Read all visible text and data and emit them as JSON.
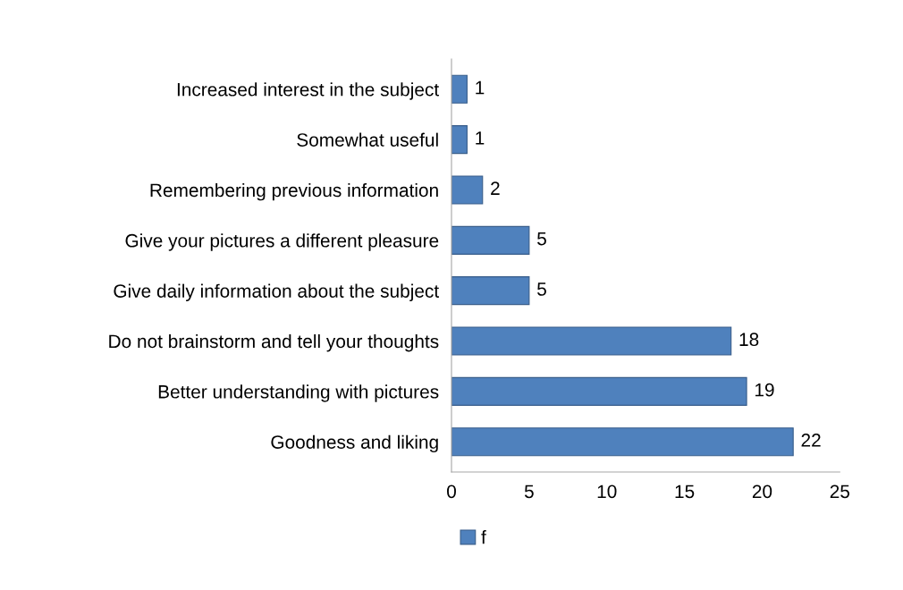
{
  "chart_data": {
    "type": "bar",
    "orientation": "horizontal",
    "categories": [
      "Increased interest in the subject",
      "Somewhat useful",
      "Remembering previous information",
      "Give your pictures a different pleasure",
      "Give daily information about the subject",
      "Do not brainstorm and tell your thoughts",
      "Better understanding with pictures",
      "Goodness and liking"
    ],
    "series": [
      {
        "name": "f",
        "color": "#4f81bd",
        "values": [
          1,
          1,
          2,
          5,
          5,
          18,
          19,
          22
        ]
      }
    ],
    "xlim": [
      0,
      25
    ],
    "xticks": [
      0,
      5,
      10,
      15,
      20,
      25
    ],
    "data_labels": true,
    "legend": "bottom",
    "grid": false
  }
}
